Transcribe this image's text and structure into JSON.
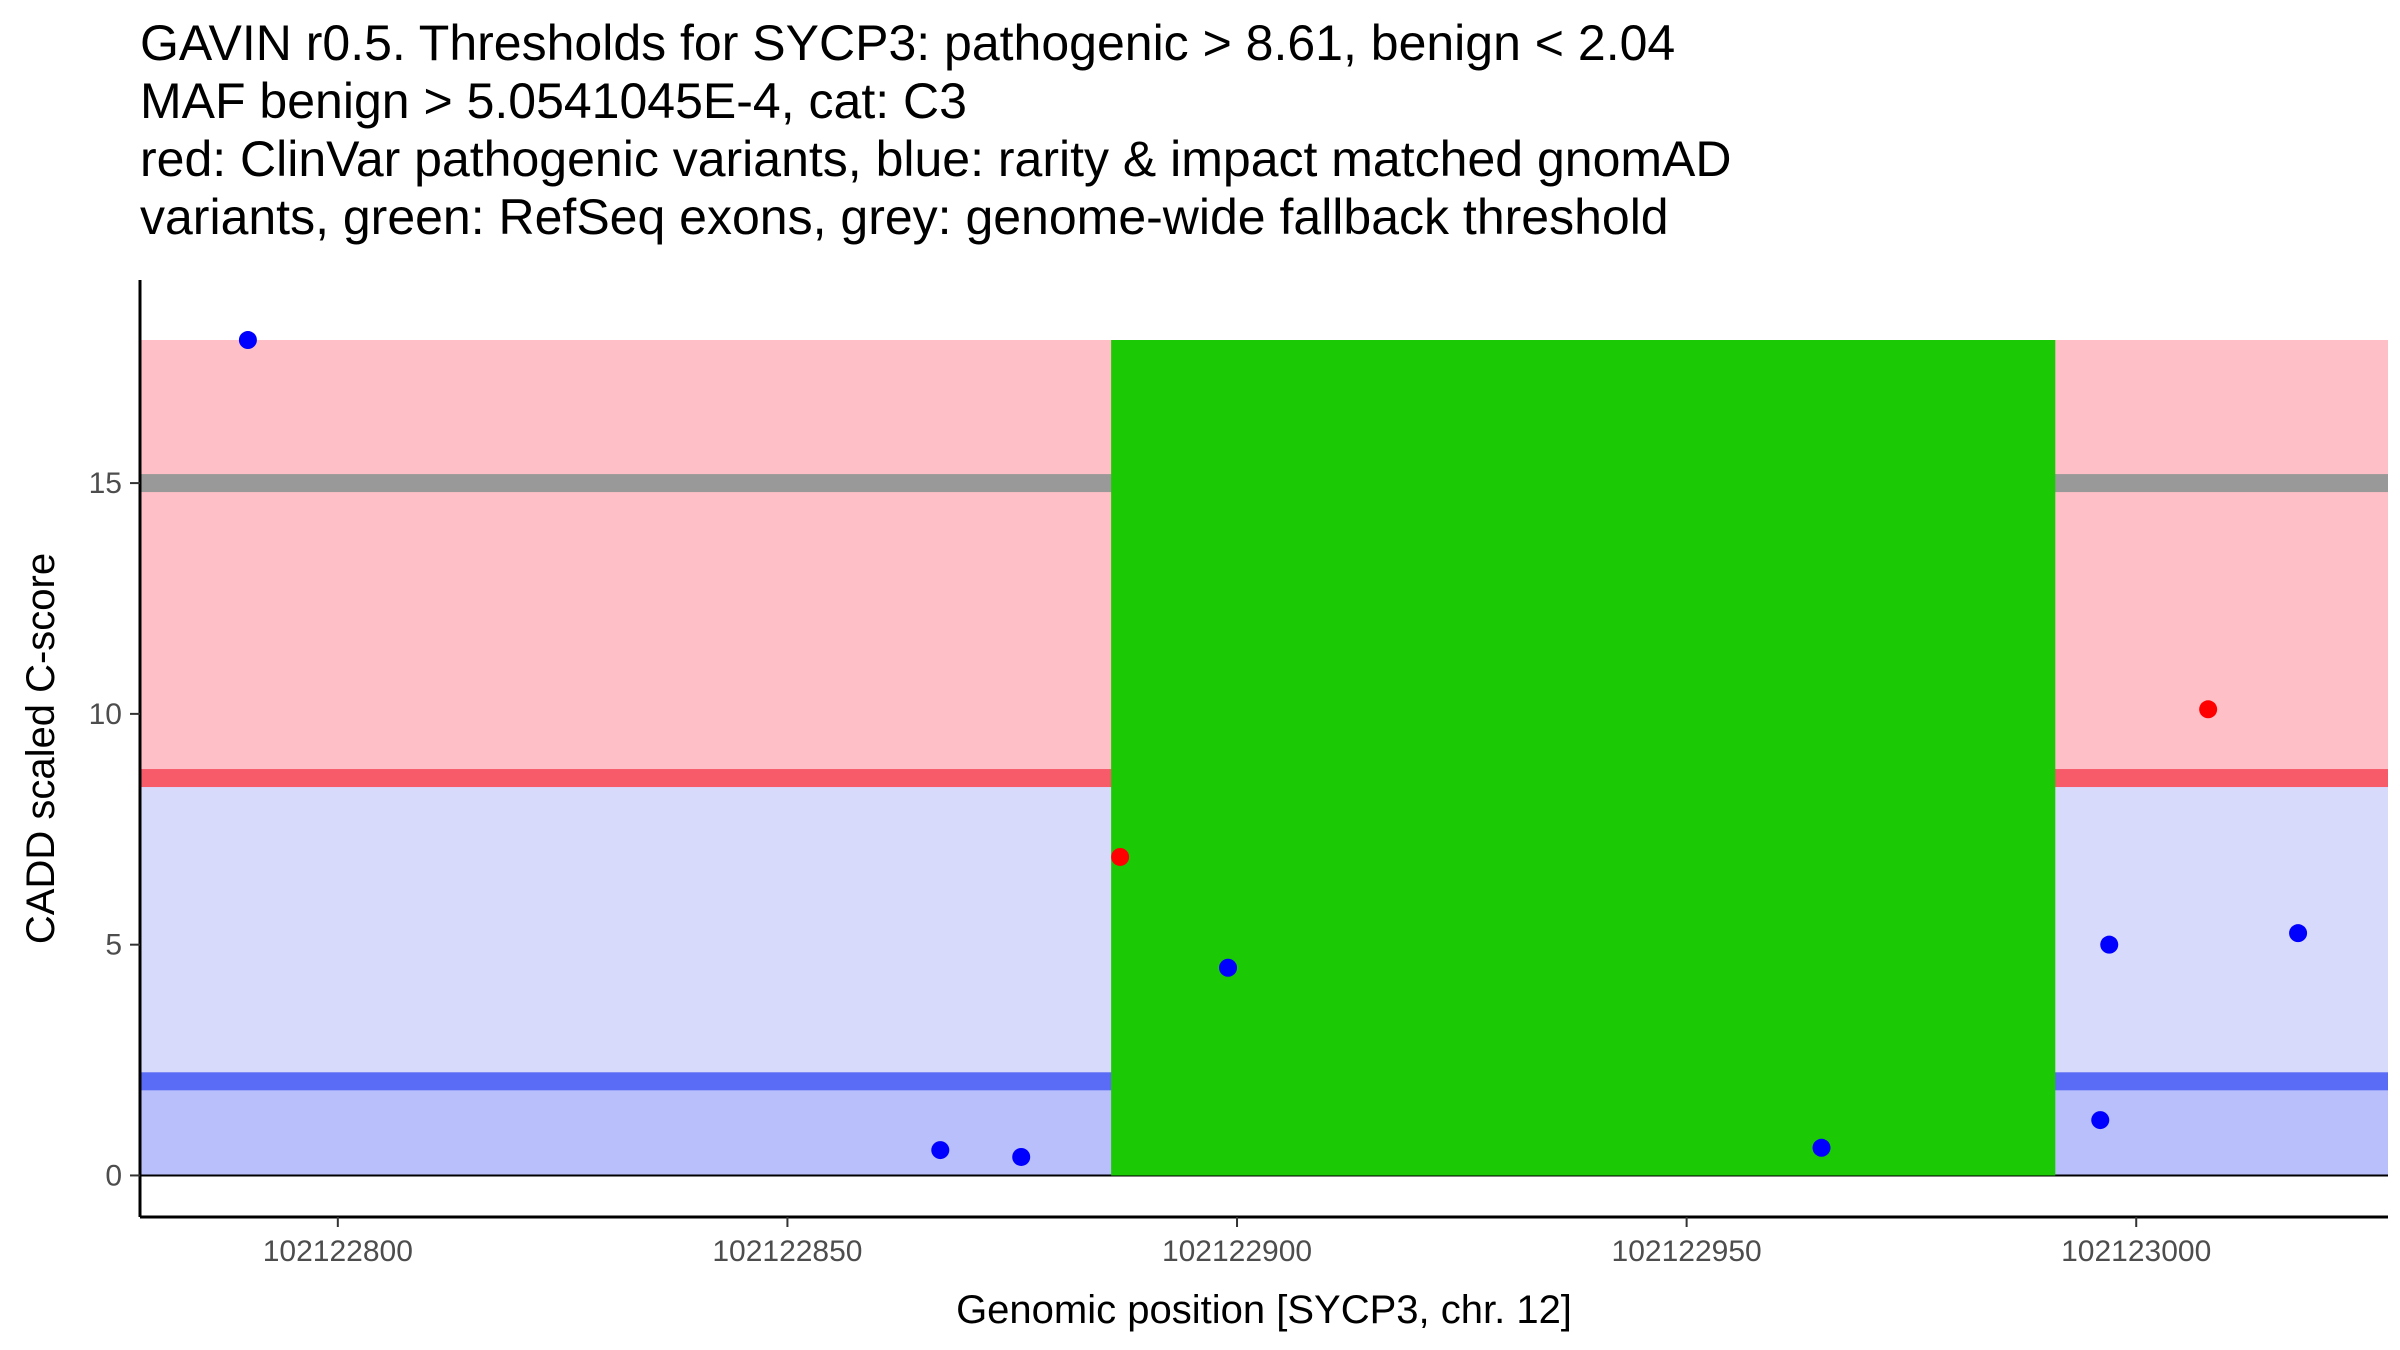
{
  "chart_data": {
    "type": "scatter",
    "title_lines": [
      "GAVIN r0.5. Thresholds for SYCP3: pathogenic > 8.61, benign < 2.04",
      "MAF benign > 5.0541045E-4, cat: C3",
      "red: ClinVar pathogenic variants, blue: rarity & impact matched gnomAD",
      "variants, green: RefSeq exons, grey: genome-wide fallback threshold"
    ],
    "xlabel": "Genomic position [SYCP3, chr. 12]",
    "ylabel": "CADD scaled C-score",
    "xlim": [
      102122778,
      102123028
    ],
    "ylim": [
      -0.9,
      19.4
    ],
    "x_ticks": [
      102122800,
      102122850,
      102122900,
      102122950,
      102123000
    ],
    "x_tick_labels": [
      "102122800",
      "102122850",
      "102122900",
      "102122950",
      "102123000"
    ],
    "y_ticks": [
      0,
      5,
      10,
      15
    ],
    "y_tick_labels": [
      "0",
      "5",
      "10",
      "15"
    ],
    "thresholds": {
      "pathogenic": 8.61,
      "benign": 2.04,
      "fallback": 15,
      "region_max": 18.1
    },
    "exon": {
      "start": 102122886,
      "end": 102122991
    },
    "colors": {
      "pathogenic_zone": "#FFBFC6",
      "vus_zone": "#D8DAFC",
      "benign_zone": "#B9BFFB",
      "pathogenic_line": "#F75B6A",
      "benign_line": "#5A6CF5",
      "fallback_line": "#999999",
      "exon": "#1CC905",
      "clinvar": "#FF0000",
      "gnomad": "#0000FF"
    },
    "series": [
      {
        "name": "ClinVar pathogenic variants",
        "color": "#FF0000",
        "points": [
          {
            "x": 102122887,
            "y": 6.9
          },
          {
            "x": 102123008,
            "y": 10.1
          }
        ]
      },
      {
        "name": "rarity & impact matched gnomAD variants",
        "color": "#0000FF",
        "points": [
          {
            "x": 102122790,
            "y": 18.1
          },
          {
            "x": 102122867,
            "y": 0.55
          },
          {
            "x": 102122876,
            "y": 0.4
          },
          {
            "x": 102122899,
            "y": 4.5
          },
          {
            "x": 102122965,
            "y": 0.6
          },
          {
            "x": 102122996,
            "y": 1.2
          },
          {
            "x": 102122997,
            "y": 5.0
          },
          {
            "x": 102123018,
            "y": 5.25
          }
        ]
      }
    ]
  }
}
